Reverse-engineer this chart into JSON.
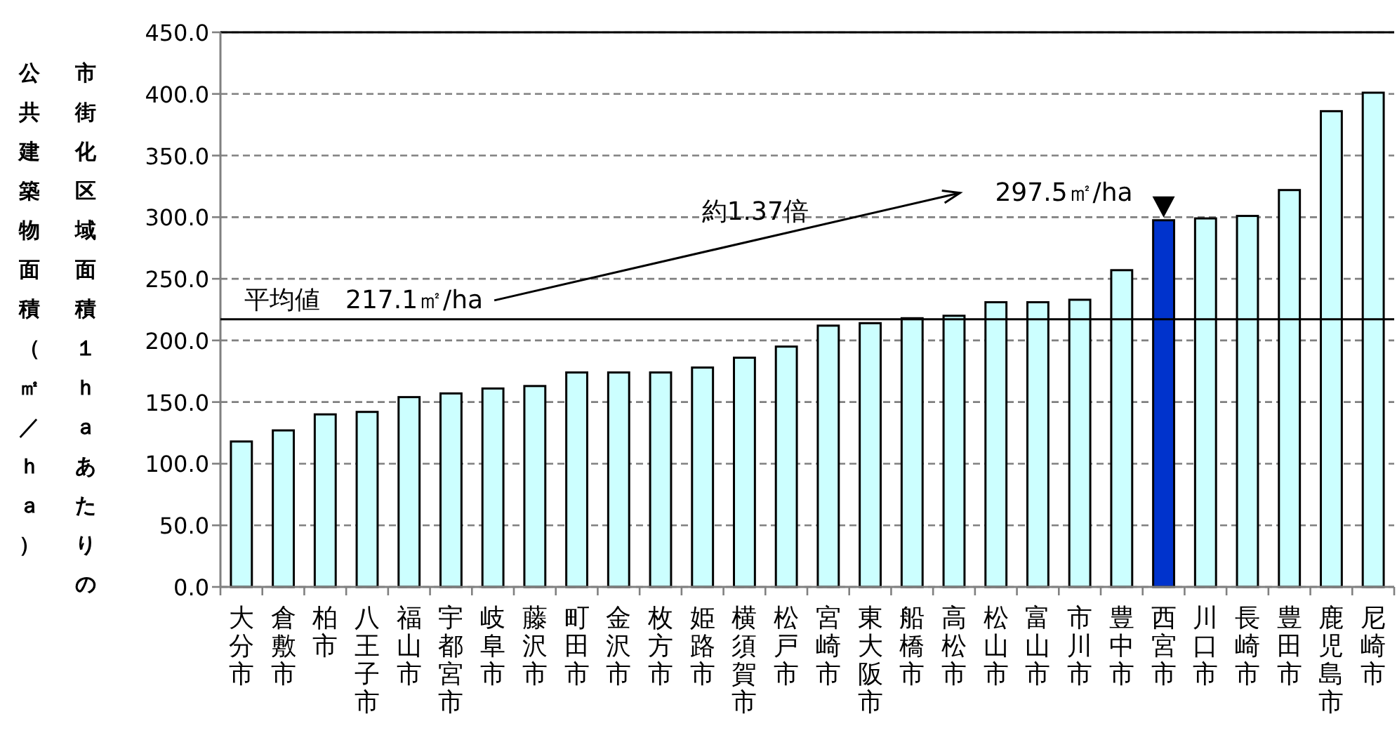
{
  "chart_data": {
    "type": "bar",
    "ylabel": "市街化区域面積１ｈａあたりの公共建築物面積（㎡／ｈａ）",
    "categories": [
      "大分市",
      "倉敷市",
      "柏市",
      "八王子市",
      "福山市",
      "宇都宮市",
      "岐阜市",
      "藤沢市",
      "町田市",
      "金沢市",
      "枚方市",
      "姫路市",
      "横須賀市",
      "松戸市",
      "宮崎市",
      "東大阪市",
      "船橋市",
      "高松市",
      "松山市",
      "富山市",
      "市川市",
      "豊中市",
      "西宮市",
      "川口市",
      "長崎市",
      "豊田市",
      "鹿児島市",
      "尼崎市"
    ],
    "values": [
      118,
      127,
      140,
      142,
      154,
      157,
      161,
      163,
      174,
      174,
      174,
      178,
      186,
      195,
      212,
      214,
      218,
      220,
      231,
      231,
      233,
      257,
      297.5,
      299,
      301,
      322,
      386,
      401
    ],
    "colors": [
      "#ccffff",
      "#ccffff",
      "#ccffff",
      "#ccffff",
      "#ccffff",
      "#ccffff",
      "#ccffff",
      "#ccffff",
      "#ccffff",
      "#ccffff",
      "#ccffff",
      "#ccffff",
      "#ccffff",
      "#ccffff",
      "#ccffff",
      "#ccffff",
      "#ccffff",
      "#ccffff",
      "#ccffff",
      "#ccffff",
      "#ccffff",
      "#ccffff",
      "#0033cc",
      "#ccffff",
      "#ccffff",
      "#ccffff",
      "#ccffff",
      "#ccffff"
    ],
    "ylim": [
      0,
      450
    ],
    "yticks": [
      {
        "value": 0,
        "label": "0.0"
      },
      {
        "value": 50,
        "label": "50.0"
      },
      {
        "value": 100,
        "label": "100.0"
      },
      {
        "value": 150,
        "label": "150.0"
      },
      {
        "value": 200,
        "label": "200.0"
      },
      {
        "value": 250,
        "label": "250.0"
      },
      {
        "value": 300,
        "label": "300.0"
      },
      {
        "value": 350,
        "label": "350.0"
      },
      {
        "value": 400,
        "label": "400.0"
      },
      {
        "value": 450,
        "label": "450.0"
      }
    ],
    "grid": "y",
    "ref_lines": [
      {
        "axis": "y",
        "value": 217.1,
        "label": "平均値　217.1㎡/ha",
        "color": "#000000",
        "line_style": "solid"
      }
    ],
    "annotations": [
      {
        "text": "297.5㎡/ha",
        "x": "西宮市",
        "y": 297.5
      },
      "約1.37倍"
    ]
  }
}
